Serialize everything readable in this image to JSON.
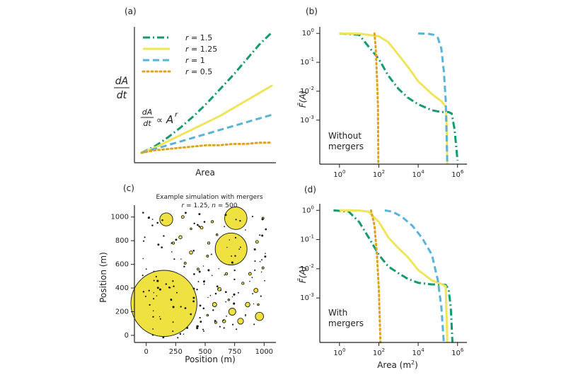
{
  "figure": {
    "panel_labels": [
      "(a)",
      "(b)",
      "(c)",
      "(d)"
    ]
  },
  "chart_data": [
    {
      "type": "line",
      "panel": "(a)",
      "xlabel": "Area",
      "ylabel": "dA/dt",
      "annotation": "dA/dt ∝ A^r",
      "legend_placement": "top-left",
      "x": [
        0,
        0.1,
        0.2,
        0.3,
        0.4,
        0.5,
        0.6,
        0.7,
        0.8,
        0.9,
        1.0
      ],
      "series": [
        {
          "name": "r = 1.5",
          "style": "dashdot",
          "color": "#139b6f",
          "values": [
            0.05,
            0.1,
            0.17,
            0.25,
            0.34,
            0.44,
            0.55,
            0.66,
            0.78,
            0.9,
            1.0
          ]
        },
        {
          "name": "r = 1.25",
          "style": "solid",
          "color": "#eee55b",
          "values": [
            0.05,
            0.09,
            0.14,
            0.19,
            0.24,
            0.29,
            0.34,
            0.4,
            0.46,
            0.52,
            0.58
          ]
        },
        {
          "name": "r = 1",
          "style": "dashed",
          "color": "#5ab4da",
          "values": [
            0.05,
            0.08,
            0.11,
            0.14,
            0.17,
            0.2,
            0.23,
            0.26,
            0.29,
            0.32,
            0.35
          ]
        },
        {
          "name": "r = 0.5",
          "style": "dotted",
          "color": "#e1a21b",
          "values": [
            0.05,
            0.07,
            0.08,
            0.09,
            0.1,
            0.11,
            0.11,
            0.12,
            0.12,
            0.13,
            0.13
          ]
        }
      ]
    },
    {
      "type": "line",
      "panel": "(b)",
      "log_x": true,
      "log_y": true,
      "xlabel": "",
      "ylabel": "F̄(A)",
      "annotation": [
        "Without",
        "mergers"
      ],
      "xlim": [
        0.1,
        3000000
      ],
      "ylim": [
        3e-05,
        1.5
      ],
      "xticks": [
        "10^0",
        "10^2",
        "10^4",
        "10^6"
      ],
      "yticks": [
        "10^-3",
        "10^-2",
        "10^-1",
        "10^0"
      ],
      "series": [
        {
          "color": "#139b6f",
          "style": "dashdot",
          "x": [
            1,
            10,
            30,
            100,
            300,
            1000,
            3000,
            10000,
            50000,
            150000,
            250000,
            350000,
            500000,
            700000,
            1000000
          ],
          "y": [
            1.0,
            0.9,
            0.35,
            0.13,
            0.035,
            0.012,
            0.006,
            0.0035,
            0.0022,
            0.0019,
            0.0019,
            0.0019,
            0.0017,
            0.0005,
            4e-05
          ]
        },
        {
          "color": "#eee55b",
          "style": "solid",
          "x": [
            1,
            10,
            100,
            300,
            1000,
            3000,
            10000,
            50000,
            150000,
            250000,
            280000,
            300000
          ],
          "y": [
            1.0,
            0.98,
            0.8,
            0.5,
            0.18,
            0.07,
            0.022,
            0.008,
            0.0045,
            0.003,
            0.001,
            3e-05
          ]
        },
        {
          "color": "#5ab4da",
          "style": "dashed",
          "x": [
            10000,
            30000,
            60000,
            100000,
            150000,
            200000,
            250000,
            300000
          ],
          "y": [
            1.0,
            0.98,
            0.9,
            0.7,
            0.3,
            0.05,
            0.005,
            3e-05
          ]
        },
        {
          "color": "#e1a21b",
          "style": "dotted",
          "x": [
            60,
            70,
            80,
            90,
            95
          ],
          "y": [
            1.0,
            0.3,
            0.03,
            0.003,
            3e-05
          ]
        }
      ]
    },
    {
      "type": "scatter",
      "panel": "(c)",
      "title": "Example simulation with mergers",
      "subtitle": "r = 1.25, n = 500",
      "xlabel": "Position (m)",
      "ylabel": "Position (m)",
      "xlim": [
        -100,
        1100
      ],
      "ylim": [
        -60,
        1100
      ],
      "xticks": [
        "0",
        "250",
        "500",
        "750",
        "1000"
      ],
      "yticks": [
        "0",
        "200",
        "400",
        "600",
        "800",
        "1000"
      ],
      "blobs": [
        {
          "x": 150,
          "y": 270,
          "r": 280
        },
        {
          "x": 720,
          "y": 730,
          "r": 135
        },
        {
          "x": 760,
          "y": 990,
          "r": 95
        },
        {
          "x": 170,
          "y": 980,
          "r": 55
        },
        {
          "x": 730,
          "y": 200,
          "r": 30
        },
        {
          "x": 960,
          "y": 160,
          "r": 35
        },
        {
          "x": 800,
          "y": 120,
          "r": 25
        },
        {
          "x": 860,
          "y": 260,
          "r": 20
        },
        {
          "x": 930,
          "y": 380,
          "r": 18
        },
        {
          "x": 580,
          "y": 260,
          "r": 18
        },
        {
          "x": 620,
          "y": 390,
          "r": 15
        },
        {
          "x": 660,
          "y": 120,
          "r": 14
        },
        {
          "x": 380,
          "y": 700,
          "r": 14
        },
        {
          "x": 290,
          "y": 830,
          "r": 14
        },
        {
          "x": 310,
          "y": 1000,
          "r": 12
        },
        {
          "x": 470,
          "y": 910,
          "r": 12
        },
        {
          "x": 560,
          "y": 960,
          "r": 10
        },
        {
          "x": 230,
          "y": 780,
          "r": 10
        },
        {
          "x": 940,
          "y": 790,
          "r": 12
        },
        {
          "x": 880,
          "y": 520,
          "r": 12
        },
        {
          "x": 820,
          "y": 440,
          "r": 10
        },
        {
          "x": 680,
          "y": 520,
          "r": 10
        },
        {
          "x": 530,
          "y": 780,
          "r": 10
        },
        {
          "x": 440,
          "y": 560,
          "r": 9
        },
        {
          "x": 330,
          "y": 610,
          "r": 9
        },
        {
          "x": 520,
          "y": 670,
          "r": 9
        },
        {
          "x": 990,
          "y": 990,
          "r": 9
        },
        {
          "x": 990,
          "y": 570,
          "r": 9
        },
        {
          "x": 590,
          "y": 110,
          "r": 9
        },
        {
          "x": 520,
          "y": 170,
          "r": 8
        },
        {
          "x": 700,
          "y": 300,
          "r": 8
        },
        {
          "x": 950,
          "y": 260,
          "r": 8
        },
        {
          "x": 380,
          "y": 900,
          "r": 8
        },
        {
          "x": 600,
          "y": 850,
          "r": 8
        }
      ]
    },
    {
      "type": "line",
      "panel": "(d)",
      "log_x": true,
      "log_y": true,
      "xlabel": "Area (m²)",
      "ylabel": "F̄(A)",
      "annotation": [
        "With",
        "mergers"
      ],
      "xlim": [
        0.1,
        3000000
      ],
      "ylim": [
        3e-05,
        1.5
      ],
      "xticks": [
        "10^0",
        "10^2",
        "10^4",
        "10^6"
      ],
      "yticks": [
        "10^-3",
        "10^-2",
        "10^-1",
        "10^0"
      ],
      "series": [
        {
          "color": "#139b6f",
          "style": "dashdot",
          "x": [
            0.5,
            3,
            10,
            30,
            100,
            300,
            1000,
            3000,
            10000,
            50000,
            150000,
            250000,
            350000,
            450000,
            550000
          ],
          "y": [
            1.0,
            0.9,
            0.4,
            0.12,
            0.03,
            0.012,
            0.007,
            0.0045,
            0.0033,
            0.0029,
            0.0029,
            0.0028,
            0.002,
            0.0005,
            3e-05
          ]
        },
        {
          "color": "#eee55b",
          "style": "solid",
          "x": [
            1,
            10,
            30,
            100,
            300,
            1000,
            3000,
            10000,
            50000,
            150000,
            250000,
            300000
          ],
          "y": [
            1.0,
            0.98,
            0.9,
            0.4,
            0.12,
            0.05,
            0.025,
            0.009,
            0.004,
            0.003,
            0.0025,
            3e-05
          ]
        },
        {
          "color": "#5ab4da",
          "style": "dashed",
          "x": [
            200,
            500,
            1500,
            5000,
            15000,
            50000,
            100000,
            150000,
            200000
          ],
          "y": [
            1.0,
            0.9,
            0.6,
            0.3,
            0.12,
            0.03,
            0.004,
            0.0005,
            3e-05
          ]
        },
        {
          "color": "#e1a21b",
          "style": "dotted",
          "x": [
            40,
            60,
            80,
            100,
            120
          ],
          "y": [
            1.0,
            0.3,
            0.03,
            0.002,
            3e-05
          ]
        }
      ]
    }
  ]
}
